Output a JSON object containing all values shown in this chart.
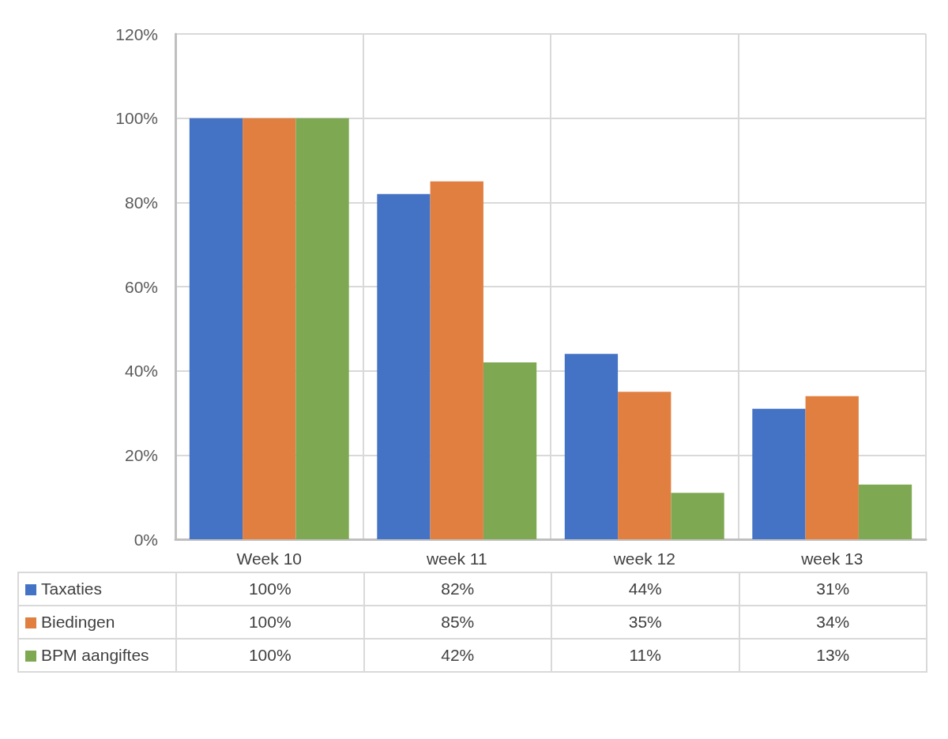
{
  "chart_data": {
    "type": "bar",
    "categories": [
      "Week 10",
      "week 11",
      "week 12",
      "week 13"
    ],
    "series": [
      {
        "name": "Taxaties",
        "color": "#4472c4",
        "values": [
          100,
          82,
          44,
          31
        ],
        "value_labels": [
          "100%",
          "82%",
          "44%",
          "31%"
        ]
      },
      {
        "name": "Biedingen",
        "color": "#e07f40",
        "values": [
          100,
          85,
          35,
          34
        ],
        "value_labels": [
          "100%",
          "85%",
          "35%",
          "34%"
        ]
      },
      {
        "name": "BPM aangiftes",
        "color": "#7ea851",
        "values": [
          100,
          42,
          11,
          13
        ],
        "value_labels": [
          "100%",
          "42%",
          "11%",
          "13%"
        ]
      }
    ],
    "ylim": [
      0,
      120
    ],
    "yticks": [
      {
        "value": 0,
        "label": "0%"
      },
      {
        "value": 20,
        "label": "20%"
      },
      {
        "value": 40,
        "label": "40%"
      },
      {
        "value": 60,
        "label": "60%"
      },
      {
        "value": 80,
        "label": "80%"
      },
      {
        "value": 100,
        "label": "100%"
      },
      {
        "value": 120,
        "label": "120%"
      }
    ],
    "grid": true,
    "legend": "bottom"
  }
}
